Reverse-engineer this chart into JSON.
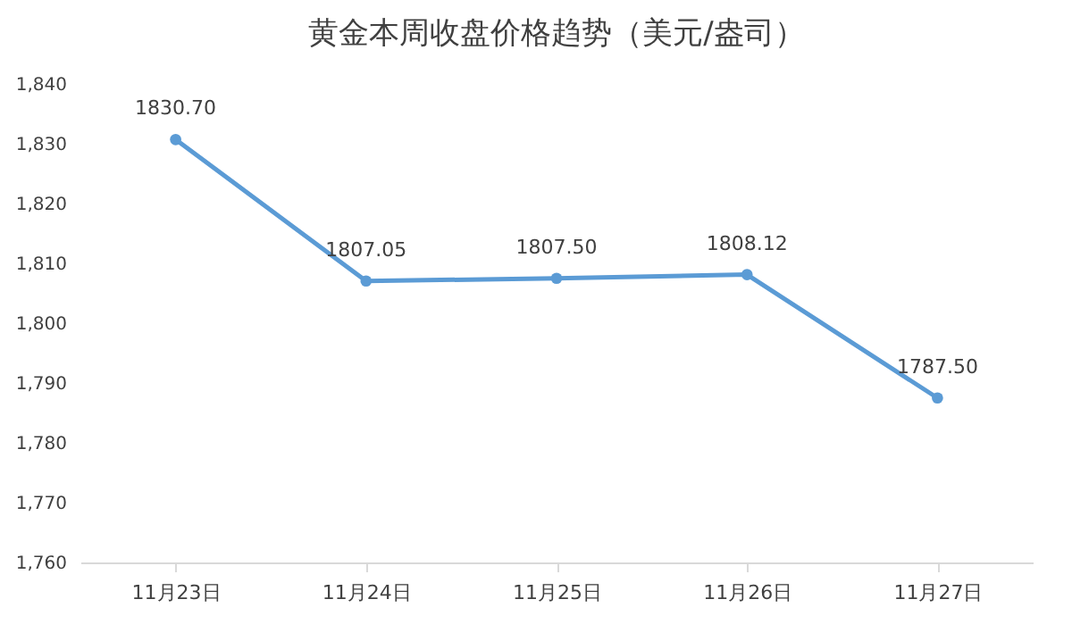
{
  "chart_data": {
    "type": "line",
    "title": "黄金本周收盘价格趋势（美元/盎司）",
    "categories": [
      "11月23日",
      "11月24日",
      "11月25日",
      "11月26日",
      "11月27日"
    ],
    "values": [
      1830.7,
      1807.05,
      1807.5,
      1808.12,
      1787.5
    ],
    "value_labels": [
      "1830.70",
      "1807.05",
      "1807.50",
      "1808.12",
      "1787.50"
    ],
    "color": "#5b9bd5",
    "marker": "circle",
    "ylim": [
      1760,
      1840
    ],
    "yticks": [
      {
        "value": 1760,
        "label": "1,760"
      },
      {
        "value": 1770,
        "label": "1,770"
      },
      {
        "value": 1780,
        "label": "1,780"
      },
      {
        "value": 1790,
        "label": "1,790"
      },
      {
        "value": 1800,
        "label": "1,800"
      },
      {
        "value": 1810,
        "label": "1,810"
      },
      {
        "value": 1820,
        "label": "1,820"
      },
      {
        "value": 1830,
        "label": "1,830"
      },
      {
        "value": 1840,
        "label": "1,840"
      }
    ]
  }
}
